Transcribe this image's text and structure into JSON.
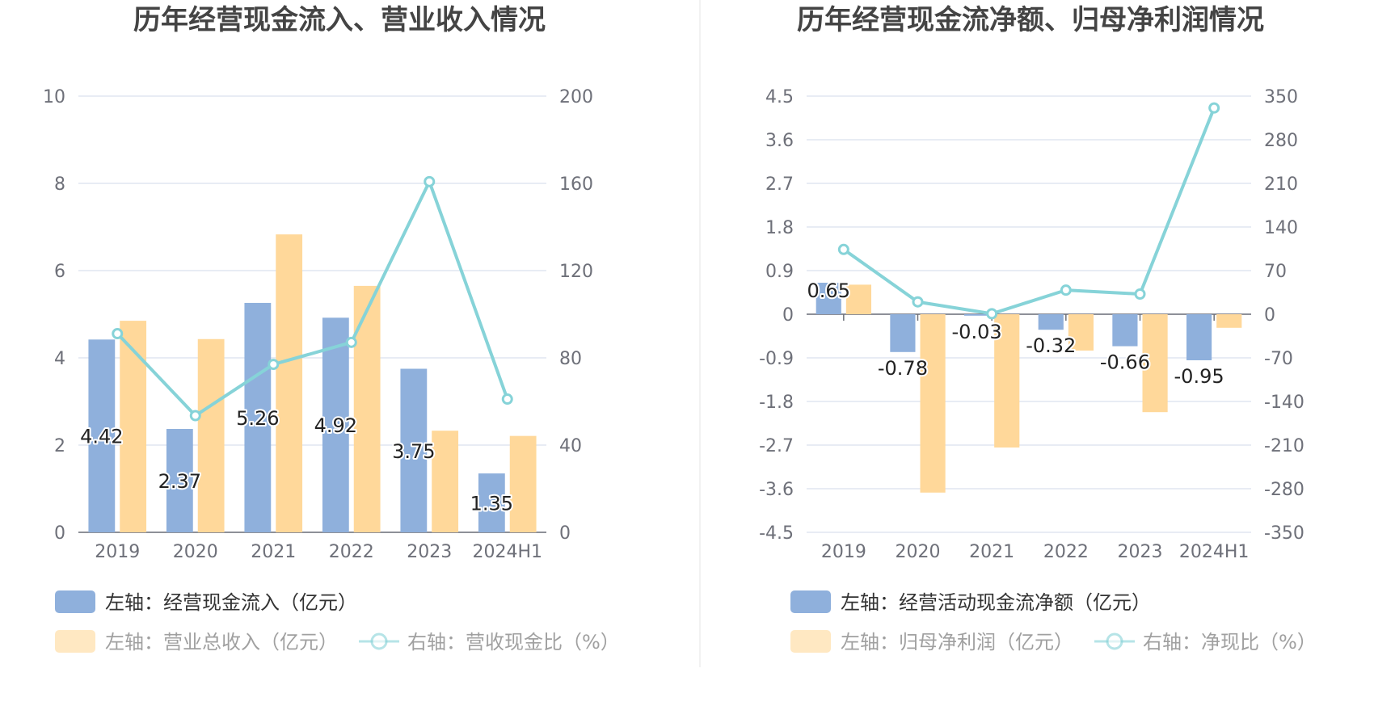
{
  "colors": {
    "cash_bar": "#8fb0dc",
    "revenue_bar": "#ffd89a",
    "line": "#86d3d8",
    "legend_dim_text": "#a0a0a0",
    "legend_text": "#333333"
  },
  "chart_data": [
    {
      "type": "bar",
      "title": "历年经营现金流入、营业收入情况",
      "categories": [
        "2019",
        "2020",
        "2021",
        "2022",
        "2023",
        "2024H1"
      ],
      "left_ticks": [
        "10",
        "8",
        "6",
        "4",
        "2",
        "0"
      ],
      "right_ticks": [
        "200",
        "160",
        "120",
        "80",
        "40",
        "0"
      ],
      "ylim_left": [
        0,
        10
      ],
      "ylim_right": [
        0,
        200
      ],
      "series": [
        {
          "name": "左轴：经营现金流入（亿元）",
          "axis": "left",
          "kind": "bar",
          "values": [
            4.42,
            2.37,
            5.26,
            4.92,
            3.75,
            1.35
          ],
          "labels": [
            "4.42",
            "2.37",
            "5.26",
            "4.92",
            "3.75",
            "1.35"
          ]
        },
        {
          "name": "左轴：营业总收入（亿元）",
          "axis": "left",
          "kind": "bar",
          "values": [
            4.85,
            4.43,
            6.83,
            5.65,
            2.33,
            2.21
          ]
        },
        {
          "name": "右轴：营收现金比（%）",
          "axis": "right",
          "kind": "line",
          "values": [
            91.1,
            53.5,
            77.0,
            87.1,
            160.8,
            61.1
          ]
        }
      ]
    },
    {
      "type": "bar",
      "title": "历年经营现金流净额、归母净利润情况",
      "categories": [
        "2019",
        "2020",
        "2021",
        "2022",
        "2023",
        "2024H1"
      ],
      "left_ticks": [
        "4.5",
        "3.6",
        "2.7",
        "1.8",
        "0.9",
        "0",
        "-0.9",
        "-1.8",
        "-2.7",
        "-3.6",
        "-4.5"
      ],
      "right_ticks": [
        "350",
        "280",
        "210",
        "140",
        "70",
        "0",
        "-70",
        "-140",
        "-210",
        "-280",
        "-350"
      ],
      "ylim_left": [
        -4.5,
        4.5
      ],
      "ylim_right": [
        -350,
        350
      ],
      "series": [
        {
          "name": "左轴：经营活动现金流净额（亿元）",
          "axis": "left",
          "kind": "bar",
          "values": [
            0.65,
            -0.78,
            -0.03,
            -0.32,
            -0.66,
            -0.95
          ],
          "labels": [
            "0.65",
            "-0.78",
            "-0.03",
            "-0.32",
            "-0.66",
            "-0.95"
          ]
        },
        {
          "name": "左轴：归母净利润（亿元）",
          "axis": "left",
          "kind": "bar",
          "values": [
            0.61,
            -3.68,
            -2.75,
            -0.75,
            -2.02,
            -0.28
          ]
        },
        {
          "name": "右轴：净现比（%）",
          "axis": "right",
          "kind": "line",
          "values": [
            104,
            19.8,
            0.8,
            38.7,
            32.4,
            331
          ]
        }
      ]
    }
  ]
}
